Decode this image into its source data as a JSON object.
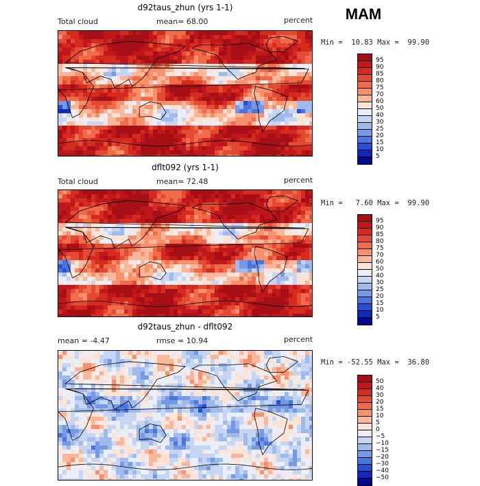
{
  "season": "MAM",
  "panels": [
    {
      "title": "d92taus_zhun (yrs 1-1)",
      "sub_left": "Total cloud",
      "sub_mid": "mean=  68.00",
      "sub_right": "percent",
      "minmax": "Min =  10.83 Max =  99.90",
      "kind": "abs"
    },
    {
      "title": "dflt092 (yrs 1-1)",
      "sub_left": "Total cloud",
      "sub_mid": "mean=  72.48",
      "sub_right": "percent",
      "minmax": "Min =   7.60 Max =  99.90",
      "kind": "abs"
    },
    {
      "title": "d92taus_zhun - dflt092",
      "sub_left": "mean =  -4.47",
      "sub_mid": "rmse =  10.94",
      "sub_right": "percent",
      "minmax": "Min = -52.55 Max =  36.80",
      "kind": "diff"
    }
  ],
  "colorbar_abs": {
    "labels": [
      "95",
      "90",
      "85",
      "80",
      "75",
      "70",
      "60",
      "50",
      "40",
      "30",
      "25",
      "20",
      "15",
      "10",
      "5"
    ],
    "colors": [
      "#a50f15",
      "#c0171b",
      "#d42a20",
      "#e34a33",
      "#ef6b4a",
      "#f7906b",
      "#fbb79b",
      "#fde3d6",
      "#e9eef8",
      "#c6d6f2",
      "#9fbbec",
      "#7599e5",
      "#4c74de",
      "#2a4ed3",
      "#1228b8",
      "#00088f"
    ]
  },
  "colorbar_diff": {
    "labels": [
      "50",
      "40",
      "30",
      "20",
      "15",
      "10",
      "5",
      "0",
      "−5",
      "−10",
      "−15",
      "−20",
      "−30",
      "−40",
      "−50"
    ],
    "colors": [
      "#a50f15",
      "#c0171b",
      "#d42a20",
      "#e34a33",
      "#ef6b4a",
      "#f7906b",
      "#fbb79b",
      "#fde3d6",
      "#e9eef8",
      "#c6d6f2",
      "#9fbbec",
      "#7599e5",
      "#4c74de",
      "#2a4ed3",
      "#1228b8",
      "#00088f"
    ]
  }
}
